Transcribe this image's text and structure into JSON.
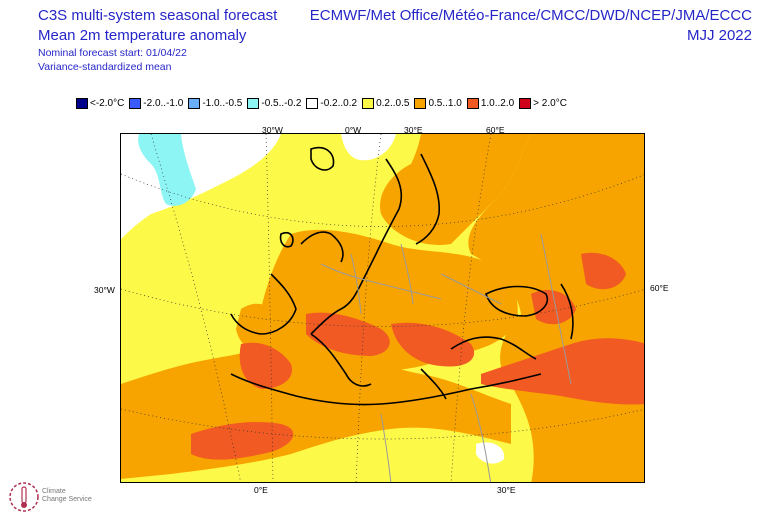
{
  "header": {
    "title_line1": "C3S multi-system seasonal forecast",
    "title_line2": "Mean 2m temperature anomaly",
    "subtitle_line1": "Nominal forecast start: 01/04/22",
    "subtitle_line2": "Variance-standardized mean",
    "centres": "ECMWF/Met Office/Météo-France/CMCC/DWD/NCEP/JMA/ECCC",
    "period": "MJJ 2022"
  },
  "legend": [
    {
      "label": "<-2.0°C",
      "color": "#00008b"
    },
    {
      "label": "-2.0..-1.0",
      "color": "#3a5bff"
    },
    {
      "label": "-1.0..-0.5",
      "color": "#6aaef7"
    },
    {
      "label": "-0.5..-0.2",
      "color": "#8ef5f5"
    },
    {
      "label": "-0.2..0.2",
      "color": "#ffffff"
    },
    {
      "label": "0.2..0.5",
      "color": "#fdf949"
    },
    {
      "label": "0.5..1.0",
      "color": "#f8a400"
    },
    {
      "label": "1.0..2.0",
      "color": "#f15a22"
    },
    {
      "label": "> 2.0°C",
      "color": "#d0021b"
    }
  ],
  "grid_labels": {
    "top": [
      "30°W",
      "0°W",
      "30°E",
      "60°E"
    ],
    "left": "30°W",
    "right": "60°E",
    "bottom": [
      "0°E",
      "30°E"
    ]
  },
  "logo": {
    "line1": "Climate",
    "line2": "Change Service"
  }
}
